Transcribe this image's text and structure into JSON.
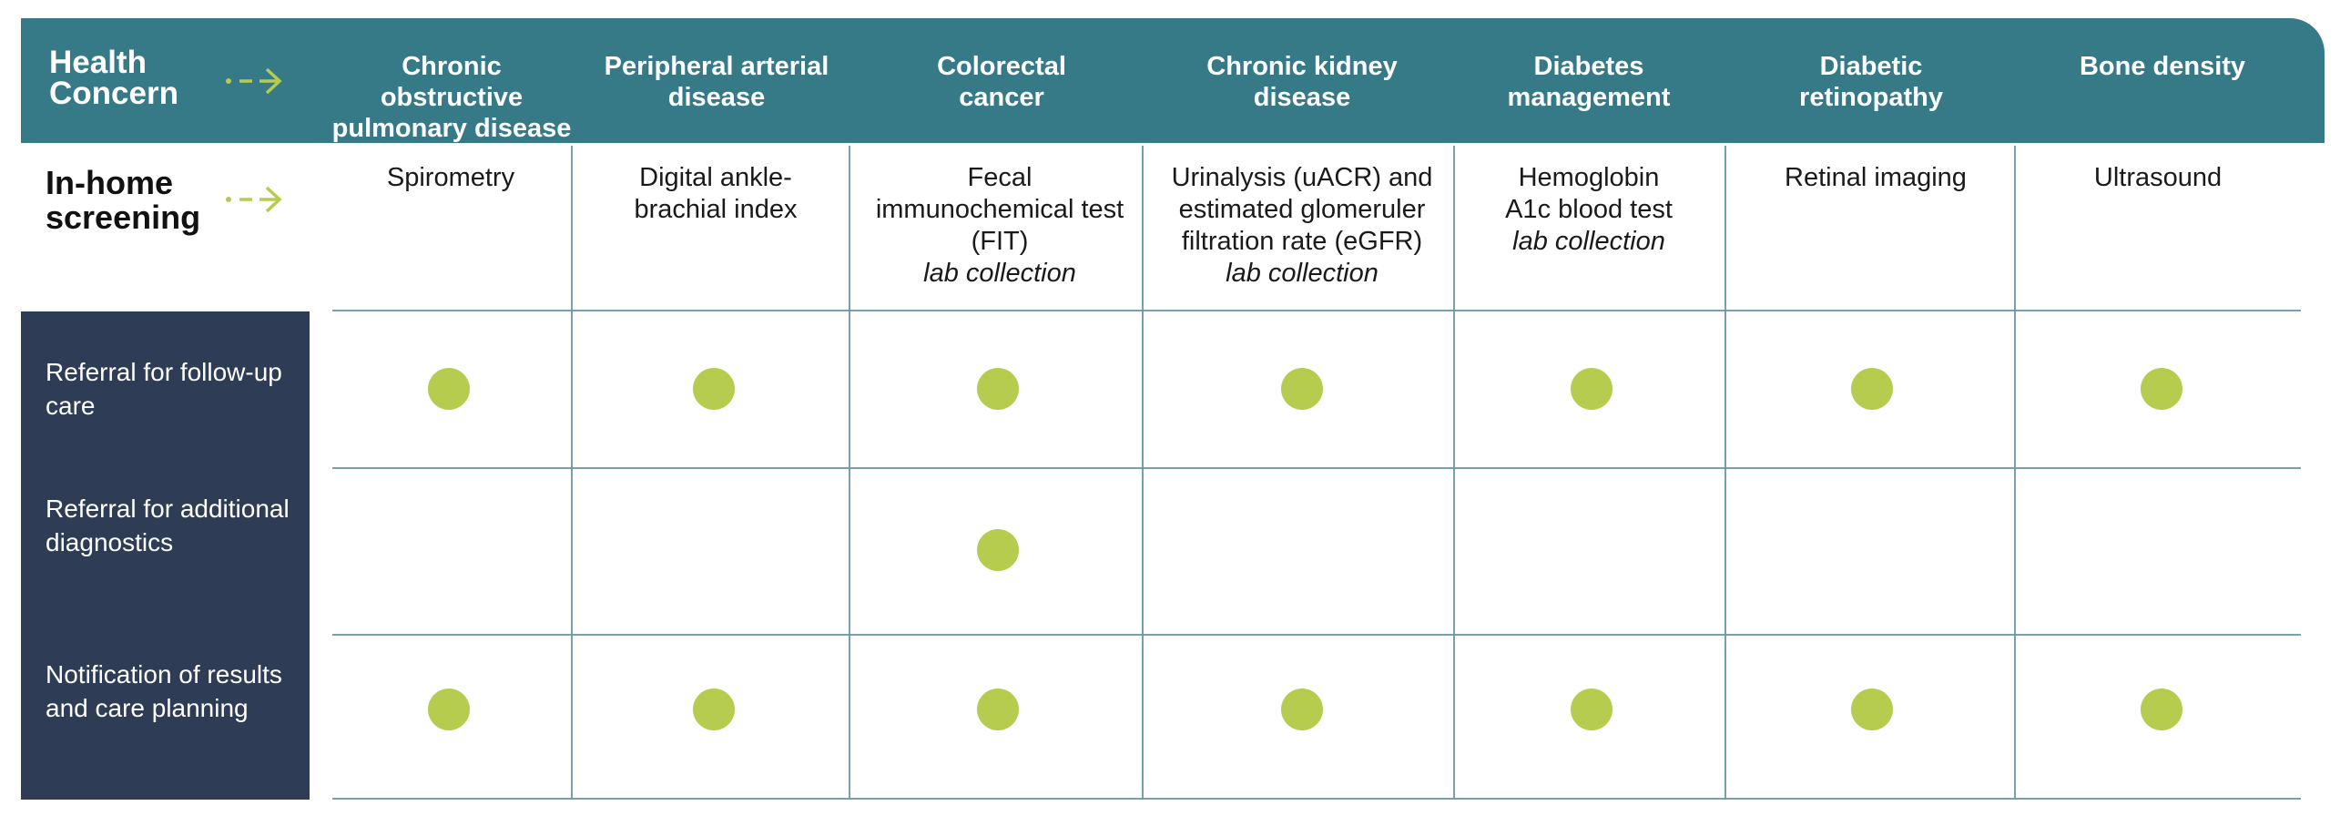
{
  "header": {
    "label": "Health Concern",
    "concerns": [
      "Chronic obstructive pulmonary disease",
      "Peripheral arterial disease",
      "Colorectal cancer",
      "Chronic kidney disease",
      "Diabetes management",
      "Diabetic retinopathy",
      "Bone density"
    ]
  },
  "screening": {
    "label": "In-home screening",
    "tests": [
      {
        "name": "Spirometry",
        "note": ""
      },
      {
        "name": "Digital ankle-brachial index",
        "note": ""
      },
      {
        "name": "Fecal immunochemical test (FIT)",
        "note": "lab collection"
      },
      {
        "name": "Urinalysis (uACR) and estimated glomeruler filtration rate (eGFR)",
        "note": "lab collection"
      },
      {
        "name": "Hemoglobin A1c blood test",
        "note": "lab collection"
      },
      {
        "name": "Retinal imaging",
        "note": ""
      },
      {
        "name": "Ultrasound",
        "note": ""
      }
    ]
  },
  "rows": [
    {
      "label": "Referral for follow-up care",
      "checks": [
        true,
        true,
        true,
        true,
        true,
        true,
        true
      ]
    },
    {
      "label": "Referral for additional diagnostics",
      "checks": [
        false,
        false,
        true,
        false,
        false,
        false,
        false
      ]
    },
    {
      "label": "Notification of results and care planning",
      "checks": [
        true,
        true,
        true,
        true,
        true,
        true,
        true
      ]
    }
  ],
  "colors": {
    "header_band": "#367a88",
    "left_panel": "#2e3d55",
    "dot": "#b5cc4f",
    "arrow": "#b5cc4f",
    "grid": "#6d95aa"
  },
  "icons": {
    "header_arrow": "dashed-arrow-right-icon",
    "screening_arrow": "dashed-arrow-right-icon"
  }
}
